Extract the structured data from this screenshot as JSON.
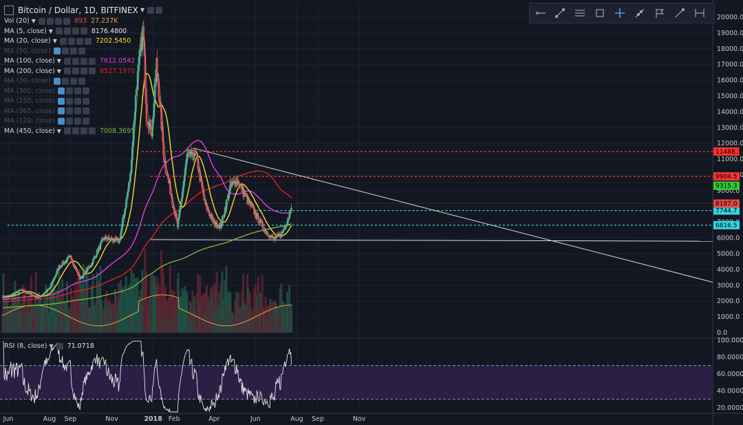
{
  "header": {
    "symbol_title": "Bitcoin / Dollar, 1D, BITFINEX"
  },
  "indicators": [
    {
      "name": "Vol (20)",
      "values": [
        "893",
        "27.237K"
      ],
      "colors": [
        "#e04848",
        "#f0a040"
      ],
      "dim": false
    },
    {
      "name": "MA (5, close)",
      "values": [
        "8176.4800"
      ],
      "colors": [
        "#e6e6e6"
      ],
      "dim": false
    },
    {
      "name": "MA (20, close)",
      "values": [
        "7202.5450"
      ],
      "colors": [
        "#f0e130"
      ],
      "dim": false
    },
    {
      "name": "MA (50, close)",
      "values": [],
      "colors": [],
      "dim": true
    },
    {
      "name": "MA (100, close)",
      "values": [
        "7612.0542"
      ],
      "colors": [
        "#e040e0"
      ],
      "dim": false
    },
    {
      "name": "MA (200, close)",
      "values": [
        "8527.1970"
      ],
      "colors": [
        "#e02020"
      ],
      "dim": false
    },
    {
      "name": "MA (30, close)",
      "values": [],
      "colors": [],
      "dim": true
    },
    {
      "name": "MA (300, close)",
      "values": [],
      "colors": [],
      "dim": true
    },
    {
      "name": "MA (250, close)",
      "values": [],
      "colors": [],
      "dim": true
    },
    {
      "name": "MA (365, close)",
      "values": [],
      "colors": [],
      "dim": true
    },
    {
      "name": "MA (120, close)",
      "values": [],
      "colors": [],
      "dim": true
    },
    {
      "name": "MA (450, close)",
      "values": [
        "7008.3695"
      ],
      "colors": [
        "#7cb342"
      ],
      "dim": false
    }
  ],
  "rsi": {
    "name": "RSI (8, close)",
    "value": "71.0718"
  },
  "toolbar_icons": [
    "horizontal-line-icon",
    "trend-line-icon",
    "parallel-channel-icon",
    "rectangle-icon",
    "crosshair-icon",
    "ray-icon",
    "flag-icon",
    "line-tool-icon",
    "measure-icon"
  ],
  "colors": {
    "background": "#131722",
    "ma5": "#e6e6e6",
    "ma20": "#f0e130",
    "ma100": "#e040e0",
    "ma200": "#e02020",
    "ma450": "#7cb342",
    "up": "#3bb38a",
    "down": "#e04848",
    "level_red": "#ff3333",
    "level_cyan": "#33d6e0"
  },
  "chart_data": [
    {
      "type": "candlestick",
      "title": "Bitcoin / Dollar, 1D, BITFINEX",
      "x_tick_labels": [
        "Jun",
        "Aug",
        "Sep",
        "Nov",
        "2018",
        "Feb",
        "Apr",
        "Jun",
        "Aug",
        "Sep",
        "Nov"
      ],
      "y_tick_labels": [
        "20000.0",
        "19000.0",
        "18000.0",
        "17000.0",
        "16000.0",
        "15000.0",
        "14000.0",
        "13000.0",
        "12000.0",
        "11000.0",
        "10000.0",
        "9000.0",
        "8000.0",
        "7000.0",
        "6000.0",
        "5000.0",
        "4000.0",
        "3000.0",
        "2000.0",
        "1000.0",
        "0.0"
      ],
      "ylim": [
        0,
        20000
      ],
      "price_path": [
        [
          "2017-06-01",
          2300
        ],
        [
          "2017-06-20",
          2700
        ],
        [
          "2017-07-15",
          2200
        ],
        [
          "2017-08-01",
          2800
        ],
        [
          "2017-08-15",
          4200
        ],
        [
          "2017-09-01",
          4800
        ],
        [
          "2017-09-15",
          3400
        ],
        [
          "2017-10-01",
          4300
        ],
        [
          "2017-10-20",
          6000
        ],
        [
          "2017-11-12",
          5800
        ],
        [
          "2017-11-28",
          9900
        ],
        [
          "2017-12-07",
          15500
        ],
        [
          "2017-12-17",
          19300
        ],
        [
          "2017-12-22",
          13800
        ],
        [
          "2017-12-30",
          12700
        ],
        [
          "2018-01-06",
          17100
        ],
        [
          "2018-01-17",
          11000
        ],
        [
          "2018-02-06",
          6700
        ],
        [
          "2018-02-20",
          11200
        ],
        [
          "2018-03-05",
          11300
        ],
        [
          "2018-03-18",
          8200
        ],
        [
          "2018-04-01",
          6900
        ],
        [
          "2018-04-11",
          6800
        ],
        [
          "2018-04-25",
          9300
        ],
        [
          "2018-05-05",
          9700
        ],
        [
          "2018-05-20",
          8400
        ],
        [
          "2018-06-01",
          7500
        ],
        [
          "2018-06-15",
          6500
        ],
        [
          "2018-06-28",
          5900
        ],
        [
          "2018-07-10",
          6300
        ],
        [
          "2018-07-20",
          7400
        ],
        [
          "2018-07-24",
          8187
        ]
      ],
      "moving_averages": [
        {
          "name": "MA (5, close)",
          "last": 8176.48
        },
        {
          "name": "MA (20, close)",
          "last": 7202.545
        },
        {
          "name": "MA (100, close)",
          "last": 7612.0542
        },
        {
          "name": "MA (200, close)",
          "last": 8527.197
        },
        {
          "name": "MA (450, close)",
          "last": 7008.3695
        }
      ],
      "horizontal_levels": [
        {
          "value": 11488.3,
          "label": "11488.3",
          "color": "#ff3333"
        },
        {
          "value": 9904.5,
          "label": "9904.5",
          "color": "#ff3333"
        },
        {
          "value": 7744.7,
          "label": "7744.7",
          "color": "#33d6e0"
        },
        {
          "value": 6816.5,
          "label": "6816.5",
          "color": "#33d6e0"
        }
      ],
      "price_labels": [
        {
          "value": 9315.3,
          "label": "9315.3",
          "color": "#33cc33"
        },
        {
          "value": 8187.0,
          "label": "8187.0",
          "color": "#e04848"
        }
      ],
      "volume": {
        "name": "Vol (20)",
        "last": 893,
        "ma": "27.237K"
      }
    },
    {
      "type": "line",
      "title": "RSI (8, close)",
      "last": 71.0718,
      "y_tick_labels": [
        "100.0000",
        "80.0000",
        "60.0000",
        "40.0000",
        "20.0000"
      ],
      "ylim": [
        15,
        100
      ],
      "bands": [
        70,
        30
      ]
    }
  ]
}
